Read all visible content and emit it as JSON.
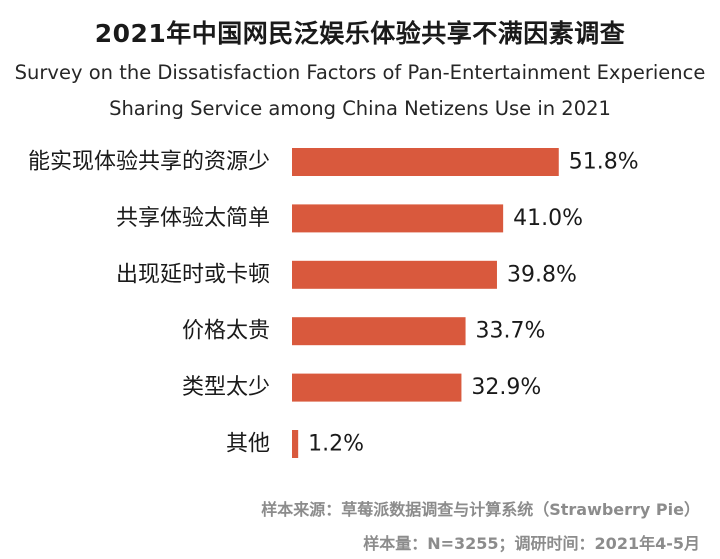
{
  "title_cn": "2021年中国网民泛娱乐体验共享不满因素调查",
  "title_en_line1": "Survey on the Dissatisfaction Factors of Pan-Entertainment Experience",
  "title_en_line2": "Sharing Service among China Netizens Use in 2021",
  "footer": {
    "source": "样本来源：草莓派数据调查与计算系统（Strawberry Pie）",
    "sample": "样本量：N=3255；调研时间：2021年4-5月"
  },
  "colors": {
    "bar": "#d9593d",
    "text": "#1a1a1a",
    "footer": "#8c8c8c"
  },
  "chart_data": {
    "type": "bar",
    "orientation": "horizontal",
    "categories": [
      "能实现体验共享的资源少",
      "共享体验太简单",
      "出现延时或卡顿",
      "价格太贵",
      "类型太少",
      "其他"
    ],
    "values": [
      51.8,
      41.0,
      39.8,
      33.7,
      32.9,
      1.2
    ],
    "value_labels": [
      "51.8%",
      "41.0%",
      "39.8%",
      "33.7%",
      "32.9%",
      "1.2%"
    ],
    "unit": "%",
    "grid": false,
    "legend": "none"
  }
}
